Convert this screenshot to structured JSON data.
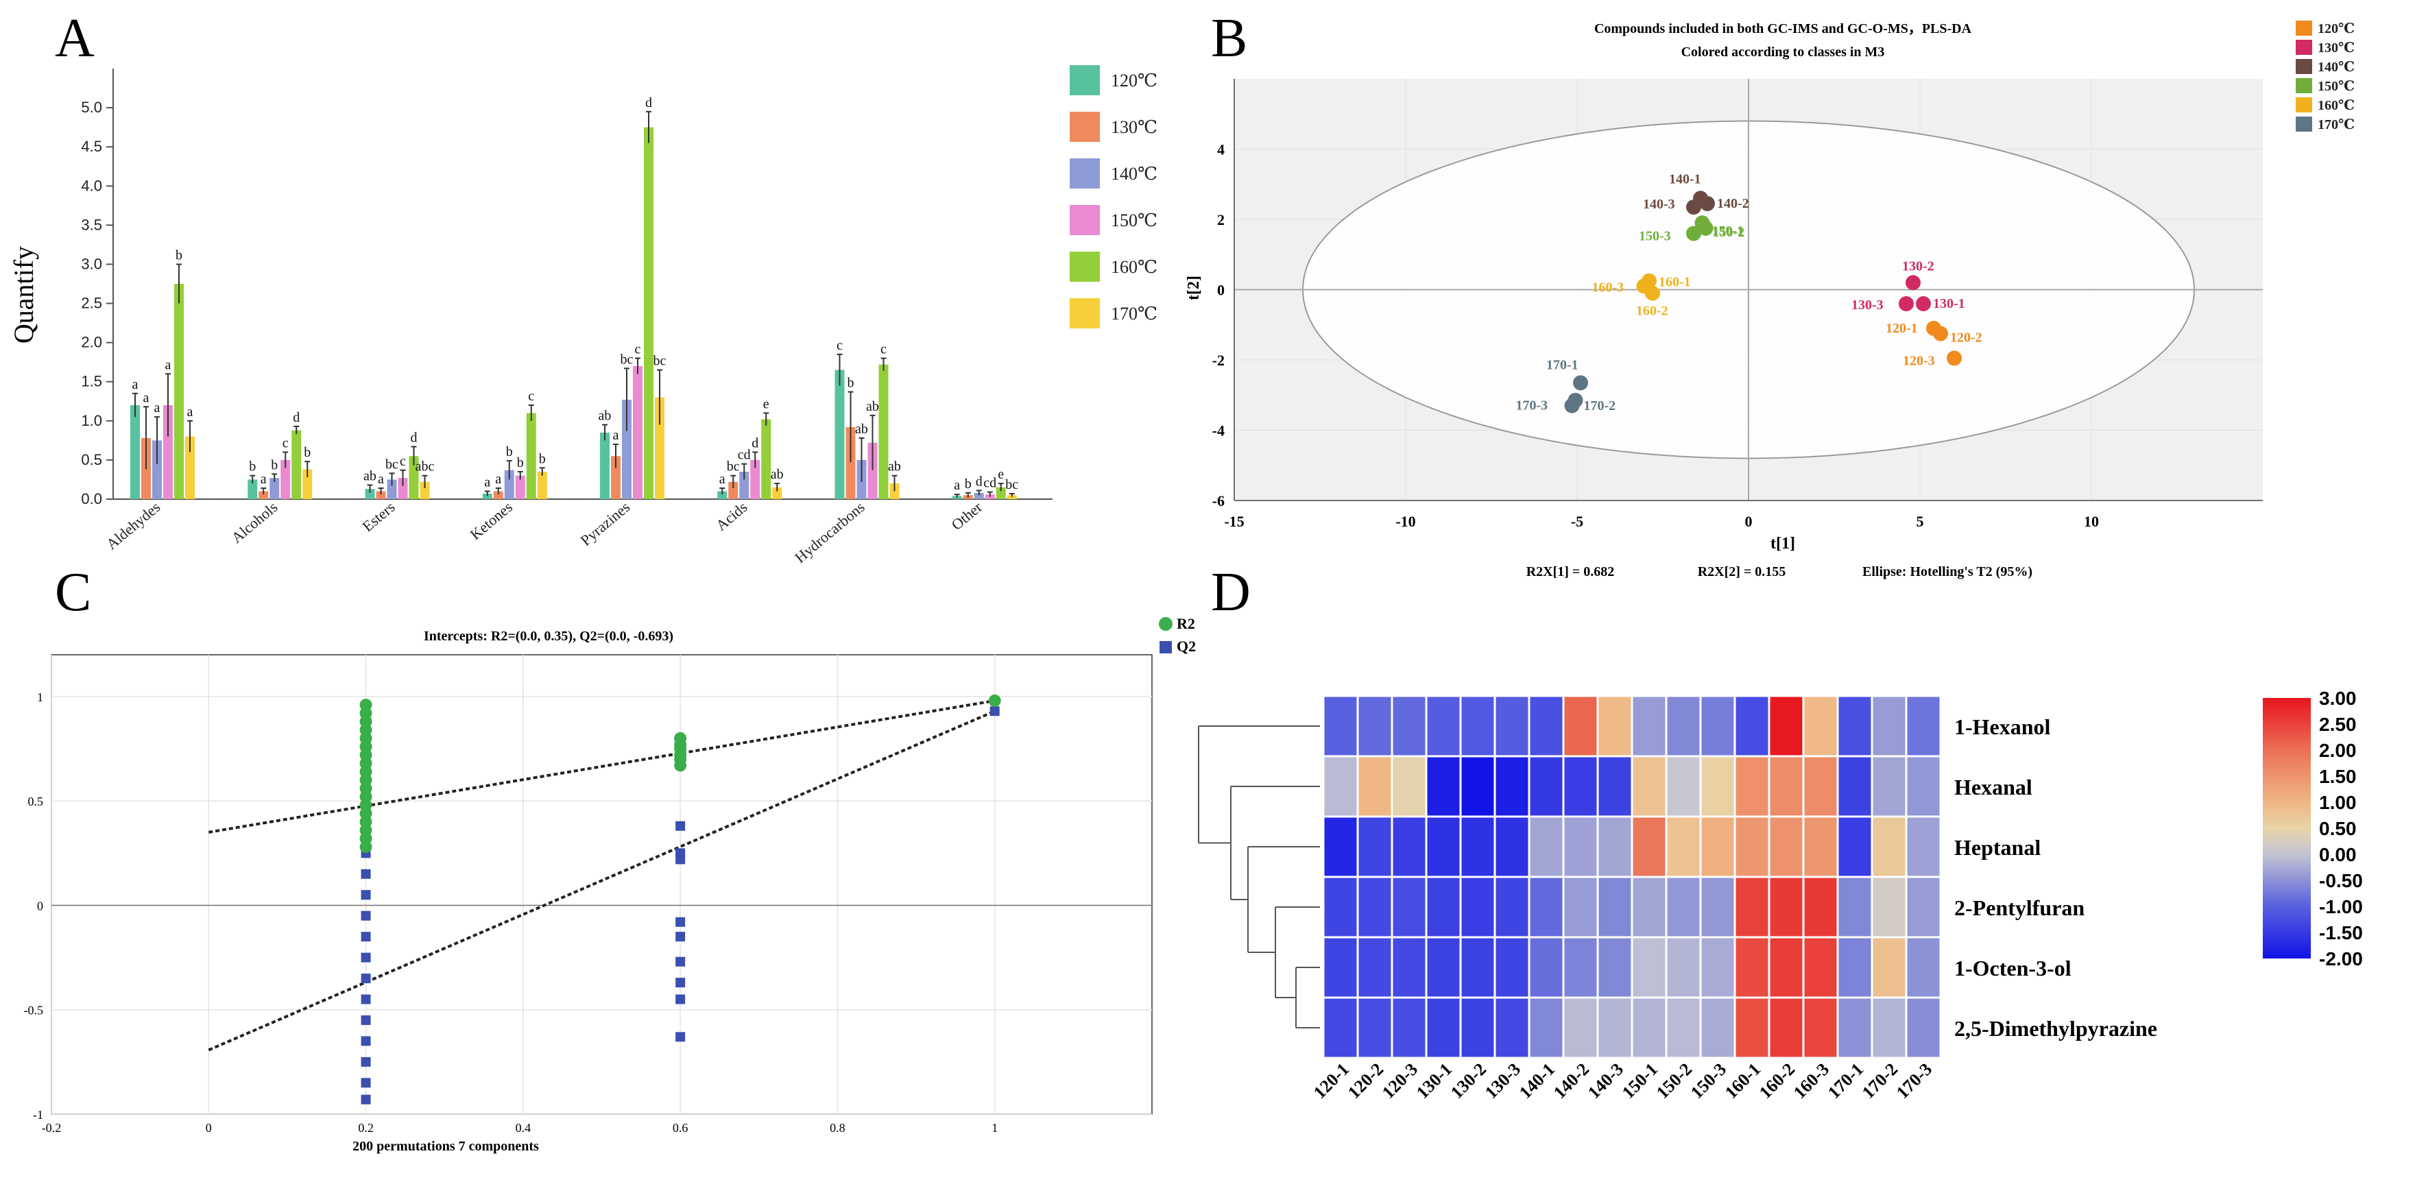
{
  "panel_letters": {
    "a": "A",
    "b": "B",
    "c": "C",
    "d": "D"
  },
  "colors": {
    "c120": "#58c2a0",
    "c130": "#f08a5d",
    "c140": "#8f9bd6",
    "c150": "#ea8ad0",
    "c160": "#93cf3a",
    "c170": "#f7cf3a",
    "b120": "#f08a1c",
    "b130": "#d12b62",
    "b140": "#6b4a43",
    "b150": "#6fae3a",
    "b160": "#f0b21c",
    "b170": "#5e7683"
  },
  "chart_data": [
    {
      "id": "A",
      "type": "bar",
      "ylabel": "Quantify",
      "xlabel": "",
      "ylim": [
        0,
        5.5
      ],
      "yticks": [
        "0.0",
        "0.5",
        "1.0",
        "1.5",
        "2.0",
        "2.5",
        "3.0",
        "3.5",
        "4.0",
        "4.5",
        "5.0"
      ],
      "categories": [
        "Aldehydes",
        "Alcohols",
        "Esters",
        "Ketones",
        "Pyrazines",
        "Acids",
        "Hydrocarbons",
        "Other"
      ],
      "series": [
        {
          "name": "120℃",
          "values": [
            1.2,
            0.25,
            0.13,
            0.07,
            0.85,
            0.1,
            1.65,
            0.04
          ],
          "errors": [
            0.15,
            0.05,
            0.05,
            0.03,
            0.1,
            0.04,
            0.2,
            0.02
          ],
          "letters": [
            "a",
            "b",
            "ab",
            "a",
            "ab",
            "a",
            "c",
            "a"
          ]
        },
        {
          "name": "130℃",
          "values": [
            0.78,
            0.1,
            0.1,
            0.1,
            0.55,
            0.22,
            0.92,
            0.05
          ],
          "errors": [
            0.4,
            0.04,
            0.04,
            0.04,
            0.15,
            0.08,
            0.45,
            0.03
          ],
          "letters": [
            "a",
            "a",
            "a",
            "a",
            "a",
            "bc",
            "b",
            "b"
          ]
        },
        {
          "name": "140℃",
          "values": [
            0.75,
            0.27,
            0.25,
            0.37,
            1.27,
            0.35,
            0.5,
            0.08
          ],
          "errors": [
            0.3,
            0.05,
            0.08,
            0.12,
            0.4,
            0.1,
            0.28,
            0.03
          ],
          "letters": [
            "a",
            "b",
            "bc",
            "b",
            "bc",
            "cd",
            "ab",
            "d"
          ]
        },
        {
          "name": "150℃",
          "values": [
            1.2,
            0.5,
            0.27,
            0.3,
            1.7,
            0.5,
            0.72,
            0.06
          ],
          "errors": [
            0.4,
            0.1,
            0.1,
            0.05,
            0.1,
            0.1,
            0.35,
            0.03
          ],
          "letters": [
            "a",
            "c",
            "c",
            "b",
            "c",
            "d",
            "ab",
            "cd"
          ]
        },
        {
          "name": "160℃",
          "values": [
            2.75,
            0.88,
            0.55,
            1.1,
            4.75,
            1.02,
            1.72,
            0.15
          ],
          "errors": [
            0.25,
            0.05,
            0.12,
            0.1,
            0.2,
            0.08,
            0.08,
            0.05
          ],
          "letters": [
            "b",
            "d",
            "d",
            "c",
            "d",
            "e",
            "c",
            "e"
          ]
        },
        {
          "name": "170℃",
          "values": [
            0.8,
            0.38,
            0.22,
            0.35,
            1.3,
            0.15,
            0.2,
            0.05
          ],
          "errors": [
            0.2,
            0.1,
            0.08,
            0.05,
            0.35,
            0.05,
            0.1,
            0.02
          ],
          "letters": [
            "a",
            "b",
            "abc",
            "b",
            "bc",
            "ab",
            "ab",
            "bc"
          ]
        }
      ]
    },
    {
      "id": "B",
      "type": "scatter",
      "title": "Compounds included in both GC-IMS and GC-O-MS，PLS-DA",
      "subtitle": "Colored according to classes in M3",
      "xlabel": "t[1]",
      "ylabel": "t[2]",
      "xlim": [
        -15,
        15
      ],
      "ylim": [
        -6,
        6
      ],
      "xticks": [
        "-15",
        "-10",
        "-5",
        "0",
        "5",
        "10"
      ],
      "yticks": [
        "-6",
        "-4",
        "-2",
        "0",
        "2",
        "4"
      ],
      "footer": [
        "R2X[1] = 0.682",
        "R2X[2] = 0.155",
        "Ellipse: Hotelling's T2 (95%)"
      ],
      "legend": [
        "120℃",
        "130℃",
        "140℃",
        "150℃",
        "160℃",
        "170℃"
      ],
      "points": [
        {
          "label": "120-1",
          "x": 5.4,
          "y": -1.1,
          "cls": 0
        },
        {
          "label": "120-2",
          "x": 5.6,
          "y": -1.25,
          "cls": 0
        },
        {
          "label": "120-3",
          "x": 6.0,
          "y": -1.95,
          "cls": 0
        },
        {
          "label": "130-1",
          "x": 5.1,
          "y": -0.4,
          "cls": 1
        },
        {
          "label": "130-2",
          "x": 4.8,
          "y": 0.2,
          "cls": 1
        },
        {
          "label": "130-3",
          "x": 4.6,
          "y": -0.4,
          "cls": 1
        },
        {
          "label": "140-1",
          "x": -1.4,
          "y": 2.6,
          "cls": 2
        },
        {
          "label": "140-2",
          "x": -1.2,
          "y": 2.45,
          "cls": 2
        },
        {
          "label": "140-3",
          "x": -1.6,
          "y": 2.35,
          "cls": 2
        },
        {
          "label": "150-1",
          "x": -1.35,
          "y": 1.9,
          "cls": 3
        },
        {
          "label": "150-2",
          "x": -1.25,
          "y": 1.75,
          "cls": 3
        },
        {
          "label": "150-3",
          "x": -1.6,
          "y": 1.6,
          "cls": 3
        },
        {
          "label": "160-1",
          "x": -2.9,
          "y": 0.25,
          "cls": 4
        },
        {
          "label": "160-2",
          "x": -2.8,
          "y": -0.1,
          "cls": 4
        },
        {
          "label": "160-3",
          "x": -3.05,
          "y": 0.1,
          "cls": 4
        },
        {
          "label": "170-1",
          "x": -4.9,
          "y": -2.65,
          "cls": 5
        },
        {
          "label": "170-2",
          "x": -5.05,
          "y": -3.15,
          "cls": 5
        },
        {
          "label": "170-3",
          "x": -5.15,
          "y": -3.3,
          "cls": 5
        }
      ]
    },
    {
      "id": "C",
      "type": "scatter",
      "title": "Intercepts: R2=(0.0, 0.35), Q2=(0.0, -0.693)",
      "xlabel": "200 permutations 7 components",
      "xlim": [
        -0.2,
        1.2
      ],
      "ylim": [
        -1,
        1.2
      ],
      "xticks": [
        "-0.2",
        "0",
        "0.2",
        "0.4",
        "0.6",
        "0.8",
        "1"
      ],
      "yticks": [
        "-1",
        "-0.5",
        "0",
        "0.5",
        "1"
      ],
      "legend": [
        "R2",
        "Q2"
      ],
      "r2_line": {
        "intercept": 0.35,
        "end": 0.98
      },
      "q2_line": {
        "intercept": -0.693,
        "end": 0.93
      },
      "r2_points": [
        {
          "x": 0.2,
          "y": 0.96
        },
        {
          "x": 0.2,
          "y": 0.92
        },
        {
          "x": 0.2,
          "y": 0.88
        },
        {
          "x": 0.2,
          "y": 0.84
        },
        {
          "x": 0.2,
          "y": 0.8
        },
        {
          "x": 0.2,
          "y": 0.76
        },
        {
          "x": 0.2,
          "y": 0.72
        },
        {
          "x": 0.2,
          "y": 0.68
        },
        {
          "x": 0.2,
          "y": 0.64
        },
        {
          "x": 0.2,
          "y": 0.6
        },
        {
          "x": 0.2,
          "y": 0.56
        },
        {
          "x": 0.2,
          "y": 0.52
        },
        {
          "x": 0.2,
          "y": 0.48
        },
        {
          "x": 0.2,
          "y": 0.44
        },
        {
          "x": 0.2,
          "y": 0.4
        },
        {
          "x": 0.2,
          "y": 0.36
        },
        {
          "x": 0.2,
          "y": 0.32
        },
        {
          "x": 0.2,
          "y": 0.28
        },
        {
          "x": 0.6,
          "y": 0.8
        },
        {
          "x": 0.6,
          "y": 0.77
        },
        {
          "x": 0.6,
          "y": 0.75
        },
        {
          "x": 0.6,
          "y": 0.72
        },
        {
          "x": 0.6,
          "y": 0.7
        },
        {
          "x": 0.6,
          "y": 0.67
        },
        {
          "x": 1,
          "y": 0.98
        }
      ],
      "q2_points": [
        {
          "x": 0.2,
          "y": 0.88
        },
        {
          "x": 0.2,
          "y": 0.82
        },
        {
          "x": 0.2,
          "y": 0.76
        },
        {
          "x": 0.2,
          "y": 0.7
        },
        {
          "x": 0.2,
          "y": 0.62
        },
        {
          "x": 0.2,
          "y": 0.55
        },
        {
          "x": 0.2,
          "y": 0.45
        },
        {
          "x": 0.2,
          "y": 0.35
        },
        {
          "x": 0.2,
          "y": 0.25
        },
        {
          "x": 0.2,
          "y": 0.15
        },
        {
          "x": 0.2,
          "y": 0.05
        },
        {
          "x": 0.2,
          "y": -0.05
        },
        {
          "x": 0.2,
          "y": -0.15
        },
        {
          "x": 0.2,
          "y": -0.25
        },
        {
          "x": 0.2,
          "y": -0.35
        },
        {
          "x": 0.2,
          "y": -0.45
        },
        {
          "x": 0.2,
          "y": -0.55
        },
        {
          "x": 0.2,
          "y": -0.65
        },
        {
          "x": 0.2,
          "y": -0.75
        },
        {
          "x": 0.2,
          "y": -0.85
        },
        {
          "x": 0.2,
          "y": -0.93
        },
        {
          "x": 0.6,
          "y": 0.38
        },
        {
          "x": 0.6,
          "y": 0.25
        },
        {
          "x": 0.6,
          "y": 0.22
        },
        {
          "x": 0.6,
          "y": -0.08
        },
        {
          "x": 0.6,
          "y": -0.15
        },
        {
          "x": 0.6,
          "y": -0.27
        },
        {
          "x": 0.6,
          "y": -0.37
        },
        {
          "x": 0.6,
          "y": -0.45
        },
        {
          "x": 0.6,
          "y": -0.63
        },
        {
          "x": 1,
          "y": 0.93
        }
      ]
    },
    {
      "id": "D",
      "type": "heatmap",
      "columns": [
        "120-1",
        "120-2",
        "120-3",
        "130-1",
        "130-2",
        "130-3",
        "140-1",
        "140-2",
        "140-3",
        "150-1",
        "150-2",
        "150-3",
        "160-1",
        "160-2",
        "160-3",
        "170-1",
        "170-2",
        "170-3"
      ],
      "rows": [
        "1-Hexanol",
        "Hexanal",
        "Heptanal",
        "2-Pentylfuran",
        "1-Octen-3-ol",
        "2,5-Dimethylpyrazine"
      ],
      "scale": {
        "min": -2,
        "max": 3,
        "ticks": [
          "3.00",
          "2.50",
          "2.00",
          "1.50",
          "1.00",
          "0.50",
          "0.00",
          "-0.50",
          "-1.00",
          "-1.50",
          "-2.00"
        ]
      },
      "values": [
        [
          -1.0,
          -0.9,
          -0.9,
          -1.05,
          -1.1,
          -1.05,
          -1.2,
          2.1,
          0.95,
          -0.4,
          -0.6,
          -0.7,
          -1.25,
          2.95,
          0.95,
          -1.2,
          -0.4,
          -0.8
        ],
        [
          -0.1,
          1.0,
          0.45,
          -1.85,
          -2.0,
          -1.85,
          -1.5,
          -1.45,
          -1.4,
          0.8,
          0.05,
          0.55,
          1.55,
          1.6,
          1.6,
          -1.4,
          -0.3,
          -0.45
        ],
        [
          -1.75,
          -1.35,
          -1.45,
          -1.6,
          -1.6,
          -1.6,
          -0.3,
          -0.35,
          -0.3,
          1.9,
          0.8,
          1.1,
          1.45,
          1.5,
          1.45,
          -1.45,
          0.7,
          -0.35
        ],
        [
          -1.35,
          -1.3,
          -1.25,
          -1.4,
          -1.45,
          -1.35,
          -0.9,
          -0.4,
          -0.6,
          -0.3,
          -0.45,
          -0.45,
          2.5,
          2.6,
          2.6,
          -0.6,
          0.2,
          -0.4
        ],
        [
          -1.35,
          -1.3,
          -1.3,
          -1.4,
          -1.4,
          -1.35,
          -0.85,
          -0.65,
          -0.6,
          -0.05,
          -0.15,
          -0.25,
          2.4,
          2.55,
          2.5,
          -0.65,
          0.85,
          -0.5
        ],
        [
          -1.3,
          -1.25,
          -1.25,
          -1.4,
          -1.4,
          -1.3,
          -0.6,
          -0.1,
          -0.15,
          -0.15,
          -0.1,
          -0.25,
          2.35,
          2.55,
          2.45,
          -0.5,
          -0.15,
          -0.55
        ]
      ]
    }
  ]
}
